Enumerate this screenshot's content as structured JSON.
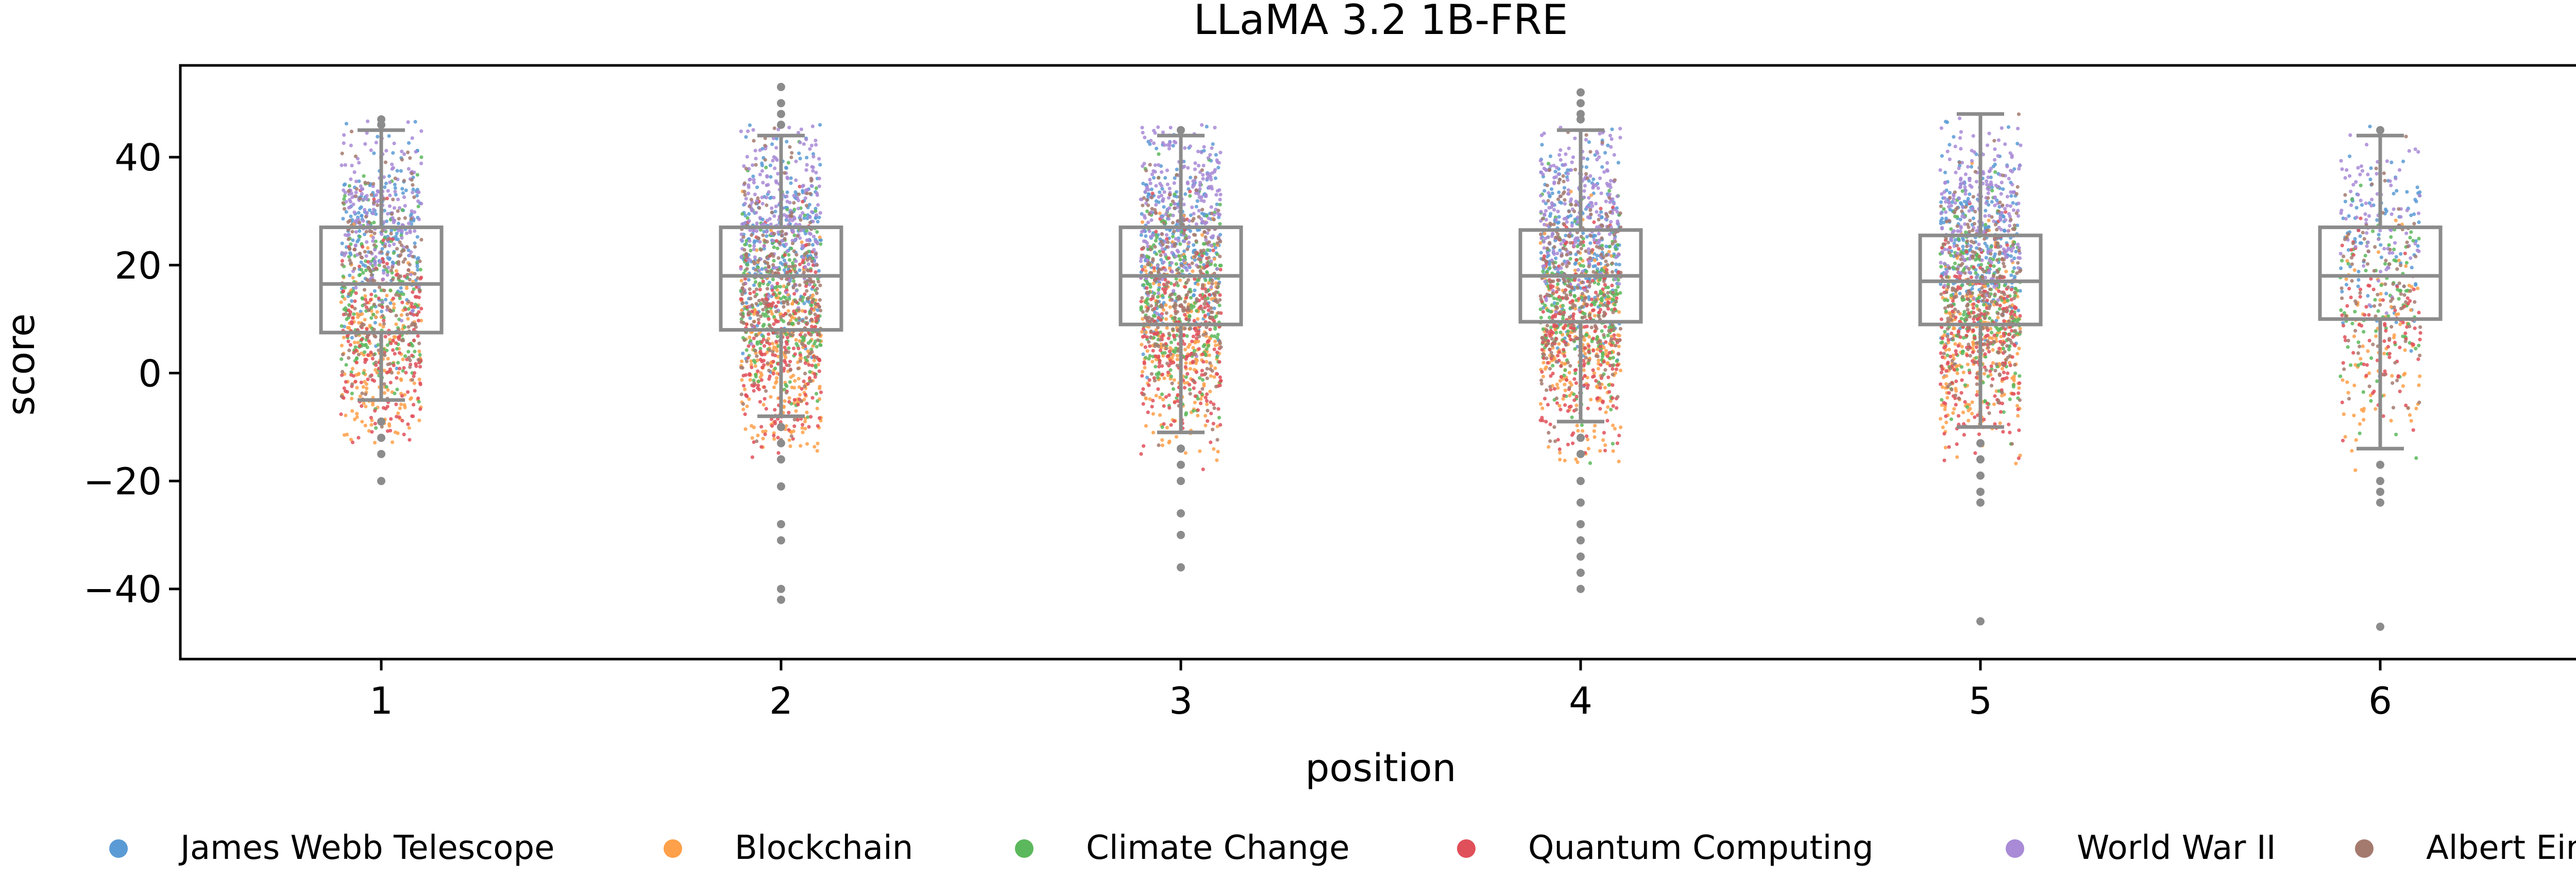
{
  "chart_data": {
    "type": "scatter",
    "title": "LLaMA 3.2 1B-FRE",
    "xlabel": "position",
    "ylabel": "score",
    "categories": [
      "1",
      "2",
      "3",
      "4",
      "5",
      "6"
    ],
    "yticks": [
      "−40",
      "−20",
      "0",
      "20",
      "40"
    ],
    "ylim": [
      -53,
      57
    ],
    "grid": false,
    "legend_position": "bottom",
    "overlay": "boxplot",
    "series": [
      {
        "name": "James Webb Telescope",
        "color": "#5b9bd5",
        "center": 24,
        "spread": 9
      },
      {
        "name": "Blockchain",
        "color": "#ffa04a",
        "center": 4,
        "spread": 10
      },
      {
        "name": "Climate Change",
        "color": "#5cb85c",
        "center": 13,
        "spread": 10
      },
      {
        "name": "Quantum Computing",
        "color": "#e0505a",
        "center": 6,
        "spread": 10
      },
      {
        "name": "World War II",
        "color": "#a88ad6",
        "center": 30,
        "spread": 8
      },
      {
        "name": "Albert Einstein",
        "color": "#a57a6e",
        "center": 16,
        "spread": 11
      }
    ],
    "boxes": [
      {
        "position": "1",
        "q1": 7.5,
        "median": 16.5,
        "q3": 27,
        "whisker_low": -5,
        "whisker_high": 45,
        "outliers": [
          -20,
          -15,
          -12,
          -9,
          46,
          47
        ],
        "n": 1100
      },
      {
        "position": "2",
        "q1": 8,
        "median": 18,
        "q3": 27,
        "whisker_low": -8,
        "whisker_high": 44,
        "outliers": [
          -42,
          -40,
          -31,
          -28,
          -21,
          -16,
          -13,
          -10,
          46,
          48,
          50,
          53
        ],
        "n": 1400
      },
      {
        "position": "3",
        "q1": 9,
        "median": 18,
        "q3": 27,
        "whisker_low": -11,
        "whisker_high": 44,
        "outliers": [
          -36,
          -30,
          -26,
          -20,
          -17,
          -14,
          45
        ],
        "n": 1400
      },
      {
        "position": "4",
        "q1": 9.5,
        "median": 18,
        "q3": 26.5,
        "whisker_low": -9,
        "whisker_high": 45,
        "outliers": [
          -40,
          -37,
          -34,
          -31,
          -28,
          -24,
          -20,
          -15,
          -12,
          47,
          48,
          50,
          52
        ],
        "n": 1400
      },
      {
        "position": "5",
        "q1": 9,
        "median": 17,
        "q3": 25.5,
        "whisker_low": -10,
        "whisker_high": 48,
        "outliers": [
          -46,
          -24,
          -22,
          -19,
          -16,
          -13
        ],
        "n": 1400
      },
      {
        "position": "6",
        "q1": 10,
        "median": 18,
        "q3": 27,
        "whisker_low": -14,
        "whisker_high": 44,
        "outliers": [
          -47,
          -24,
          -22,
          -20,
          -17,
          45
        ],
        "n": 500
      }
    ]
  }
}
